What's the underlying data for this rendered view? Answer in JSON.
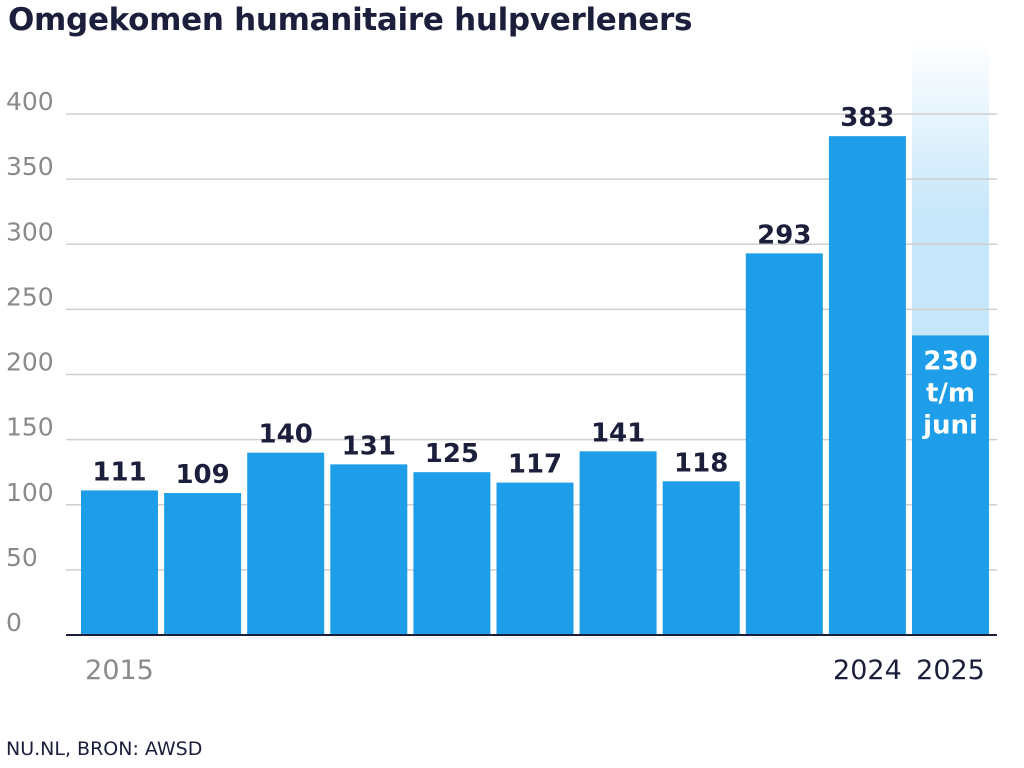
{
  "title": "Omgekomen humanitaire hulpverleners",
  "source": "NU.NL, BRON: AWSD",
  "colors": {
    "bar": "#1e9ee8",
    "highlight": "#c6e6fa",
    "grid": "#cfcfcf",
    "axis": "#1b1f3b",
    "label_dark": "#1b1f3b",
    "tick_muted": "#8a8a8a"
  },
  "chart_data": {
    "type": "bar",
    "title": "Omgekomen humanitaire hulpverleners",
    "categories": [
      "2015",
      "2016",
      "2017",
      "2018",
      "2019",
      "2020",
      "2021",
      "2022",
      "2023",
      "2024",
      "2025"
    ],
    "values": [
      111,
      109,
      140,
      131,
      125,
      117,
      141,
      118,
      293,
      383,
      230
    ],
    "data_labels": [
      "111",
      "109",
      "140",
      "131",
      "125",
      "117",
      "141",
      "118",
      "293",
      "383",
      "230\nt/m\njuni"
    ],
    "x_tick_labels": [
      {
        "category": "2015",
        "label": "2015",
        "style": "muted"
      },
      {
        "category": "2024",
        "label": "2024",
        "style": "dark"
      },
      {
        "category": "2025",
        "label": "2025",
        "style": "dark"
      }
    ],
    "ylim": [
      0,
      400
    ],
    "yticks": [
      0,
      50,
      100,
      150,
      200,
      250,
      300,
      350,
      400
    ],
    "grid": true,
    "highlight_category": "2025",
    "legend": "none"
  }
}
